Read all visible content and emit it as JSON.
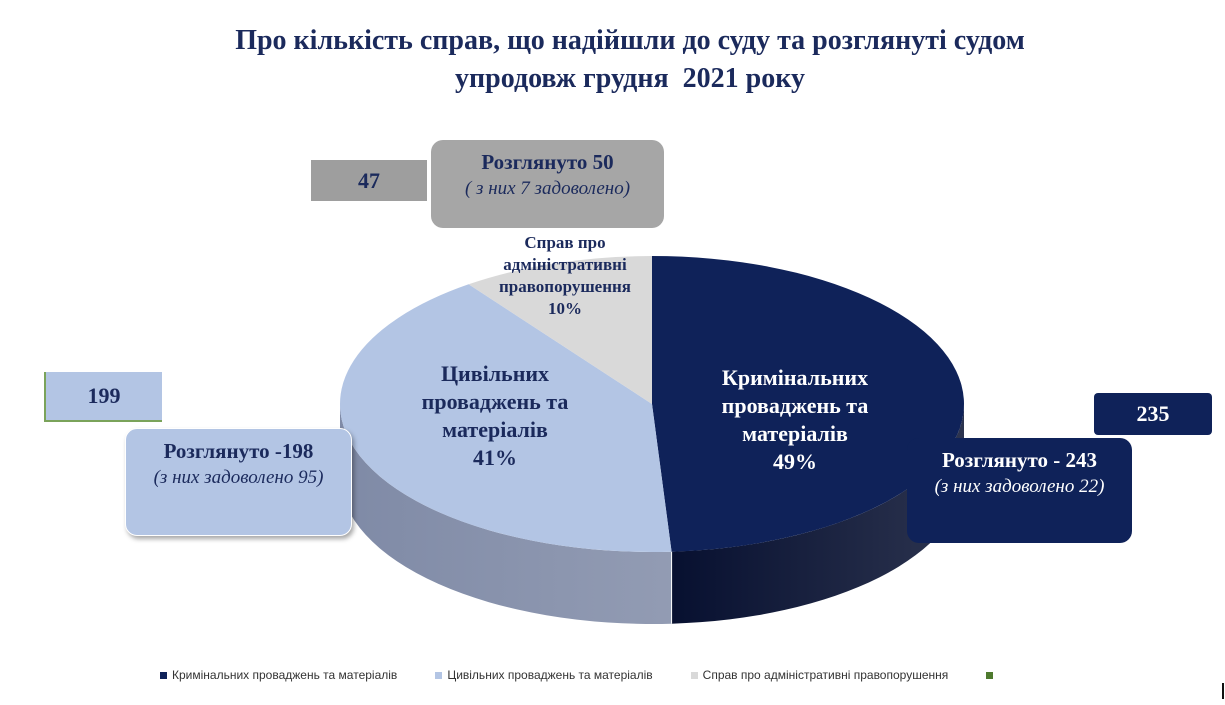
{
  "title": {
    "line1": "Про кількість справ, що надійшли до суду та розглянуті судом",
    "line2": "упродовж грудня  2021 року"
  },
  "chart_data": {
    "type": "pie",
    "title": "Про кількість справ, що надійшли до суду та розглянуті судом упродовж грудня  2021 року",
    "slices": [
      {
        "name": "Кримінальних проваджень та матеріалів",
        "label": "Кримінальних проваджень та матеріалів",
        "percent_label": "49%",
        "value": 49,
        "color": "#0f2259",
        "side_color": "#071030"
      },
      {
        "name": "Цивільних проваджень та матеріалів",
        "label": "Цивільних проваджень та матеріалів",
        "percent_label": "41%",
        "value": 41,
        "color": "#b3c5e4",
        "side_color": "#7f8aa6"
      },
      {
        "name": "Справ про адміністративні правопорушення",
        "label": "Справ про адміністративні правопорушення",
        "percent_label": "10%",
        "value": 10,
        "color": "#d9d9d9",
        "side_color": "#a8a8a8"
      }
    ],
    "legend": {
      "placement": "bottom",
      "items": [
        {
          "label": "Кримінальних проваджень та матеріалів",
          "color": "#0f2259"
        },
        {
          "label": "Цивільних проваджень та матеріалів",
          "color": "#b3c5e4"
        },
        {
          "label": "Справ про адміністративні правопорушення",
          "color": "#d9d9d9"
        },
        {
          "label": "",
          "color": "#4e7a2e"
        }
      ]
    },
    "annotations": {
      "criminal": {
        "received": "235",
        "reviewed": "Розглянуто  - 243",
        "satisfied": "(з них задоволено 22)"
      },
      "civil": {
        "received": "199",
        "reviewed": "Розглянуто  -198",
        "satisfied": "(з них задоволено 95)"
      },
      "admin": {
        "received": "47",
        "reviewed": "Розглянуто 50",
        "satisfied": "( з них 7 задоволено)"
      }
    }
  }
}
